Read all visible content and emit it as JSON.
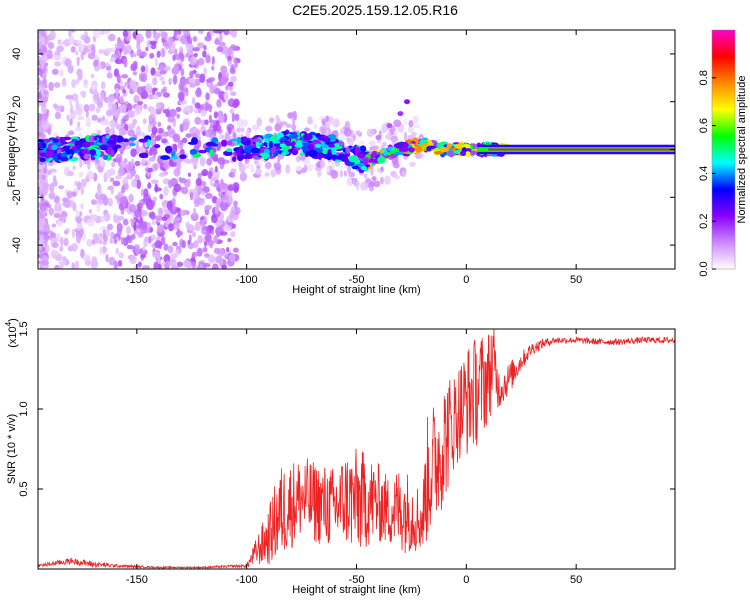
{
  "title": "C2E5.2025.159.12.05.R16",
  "colors": {
    "snr_line": "#ee2222",
    "ridge": "#ff2020",
    "background": "#ffffff"
  },
  "chart_data": [
    {
      "type": "heatmap",
      "title": "C2E5.2025.159.12.05.R16",
      "xlabel": "Height of straight line (km)",
      "ylabel": "Frequency (Hz)",
      "xlim": [
        -195,
        95
      ],
      "ylim": [
        -50,
        50
      ],
      "xticks": [
        "-150",
        "-100",
        "-50",
        "0",
        "50"
      ],
      "xtick_values": [
        -150,
        -100,
        -50,
        0,
        50
      ],
      "yticks": [
        "-40",
        "-20",
        "0",
        "20",
        "40"
      ],
      "ytick_values": [
        -40,
        -20,
        0,
        20,
        40
      ],
      "colorbar": {
        "label": "Normalized spectral amplitude",
        "range": [
          0,
          1
        ],
        "ticks": [
          "0.0",
          "0.2",
          "0.4",
          "0.6",
          "0.8"
        ],
        "tick_values": [
          0,
          0.2,
          0.4,
          0.6,
          0.8
        ],
        "colormap": [
          "#ffffff",
          "#cc88ff",
          "#8800ff",
          "#0000ff",
          "#00ffff",
          "#00ff00",
          "#ffff00",
          "#ff8800",
          "#ff0000",
          "#ff00cc"
        ]
      },
      "ridge": {
        "x": [
          -195,
          -160,
          -100,
          -80,
          -60,
          -45,
          -40,
          -30,
          -20,
          -10,
          0,
          10,
          18,
          95
        ],
        "y": [
          0,
          1,
          0,
          3,
          1,
          -5,
          -3,
          0,
          2,
          0,
          0,
          0,
          0,
          0
        ]
      },
      "upper_branch": {
        "x": [
          -40,
          -35,
          -30,
          -27
        ],
        "y": [
          5,
          10,
          15,
          20
        ]
      }
    },
    {
      "type": "line",
      "xlabel": "Height of straight line (km)",
      "ylabel": "SNR (10 * v/v)",
      "y_multiplier": "(x10",
      "y_multiplier_exp": "4",
      "y_multiplier_close": ")",
      "xlim": [
        -195,
        95
      ],
      "ylim": [
        0,
        1.5
      ],
      "xticks": [
        "-150",
        "-100",
        "-50",
        "0",
        "50"
      ],
      "xtick_values": [
        -150,
        -100,
        -50,
        0,
        50
      ],
      "yticks": [
        "0.5",
        "1.0",
        "1.5"
      ],
      "ytick_values": [
        0.5,
        1.0,
        1.5
      ],
      "series": [
        {
          "x": [
            -195,
            -180,
            -170,
            -160,
            -140,
            -120,
            -100,
            -95,
            -90,
            -85,
            -80,
            -75,
            -70,
            -65,
            -60,
            -55,
            -50,
            -45,
            -40,
            -35,
            -30,
            -25,
            -20,
            -18,
            -15,
            -10,
            -5,
            0,
            5,
            10,
            12,
            15,
            20,
            25,
            30,
            35,
            40,
            50,
            60,
            70,
            80,
            95
          ],
          "y": [
            0.02,
            0.05,
            0.03,
            0.02,
            0.01,
            0.01,
            0.02,
            0.12,
            0.2,
            0.35,
            0.4,
            0.45,
            0.42,
            0.4,
            0.38,
            0.44,
            0.42,
            0.43,
            0.41,
            0.36,
            0.38,
            0.35,
            0.3,
            0.55,
            0.65,
            0.8,
            0.95,
            1.05,
            1.12,
            1.2,
            1.3,
            1.12,
            1.2,
            1.3,
            1.38,
            1.41,
            1.43,
            1.43,
            1.42,
            1.42,
            1.43,
            1.43
          ],
          "amp": [
            0.01,
            0.02,
            0.02,
            0.01,
            0.005,
            0.005,
            0.01,
            0.1,
            0.18,
            0.3,
            0.28,
            0.26,
            0.26,
            0.26,
            0.26,
            0.3,
            0.34,
            0.3,
            0.25,
            0.22,
            0.28,
            0.25,
            0.2,
            0.4,
            0.4,
            0.4,
            0.3,
            0.35,
            0.35,
            0.3,
            0.3,
            0.12,
            0.1,
            0.06,
            0.04,
            0.03,
            0.02,
            0.02,
            0.02,
            0.02,
            0.02,
            0.02
          ]
        }
      ]
    }
  ]
}
